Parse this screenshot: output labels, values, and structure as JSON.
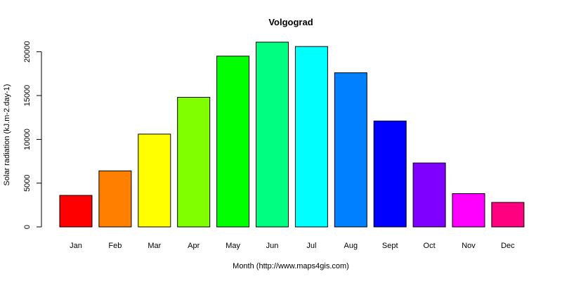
{
  "chart_data": {
    "type": "bar",
    "title": "Volgograd",
    "xlabel": "Month (http://www.maps4gis.com)",
    "ylabel": "Solar radiation (kJ.m-2.day-1)",
    "categories": [
      "Jan",
      "Feb",
      "Mar",
      "Apr",
      "May",
      "Jun",
      "Jul",
      "Aug",
      "Sept",
      "Oct",
      "Nov",
      "Dec"
    ],
    "values": [
      3600,
      6400,
      10600,
      14800,
      19500,
      21100,
      20600,
      17600,
      12100,
      7300,
      3800,
      2800
    ],
    "colors": [
      "#FF0000",
      "#FF8000",
      "#FFFF00",
      "#80FF00",
      "#00FF00",
      "#00FF80",
      "#00FFFF",
      "#0080FF",
      "#0000FF",
      "#8000FF",
      "#FF00FF",
      "#FF0080"
    ],
    "yticks": [
      0,
      5000,
      10000,
      15000,
      20000
    ],
    "ylim": [
      0,
      21100
    ],
    "grid": false,
    "legend": "none"
  }
}
